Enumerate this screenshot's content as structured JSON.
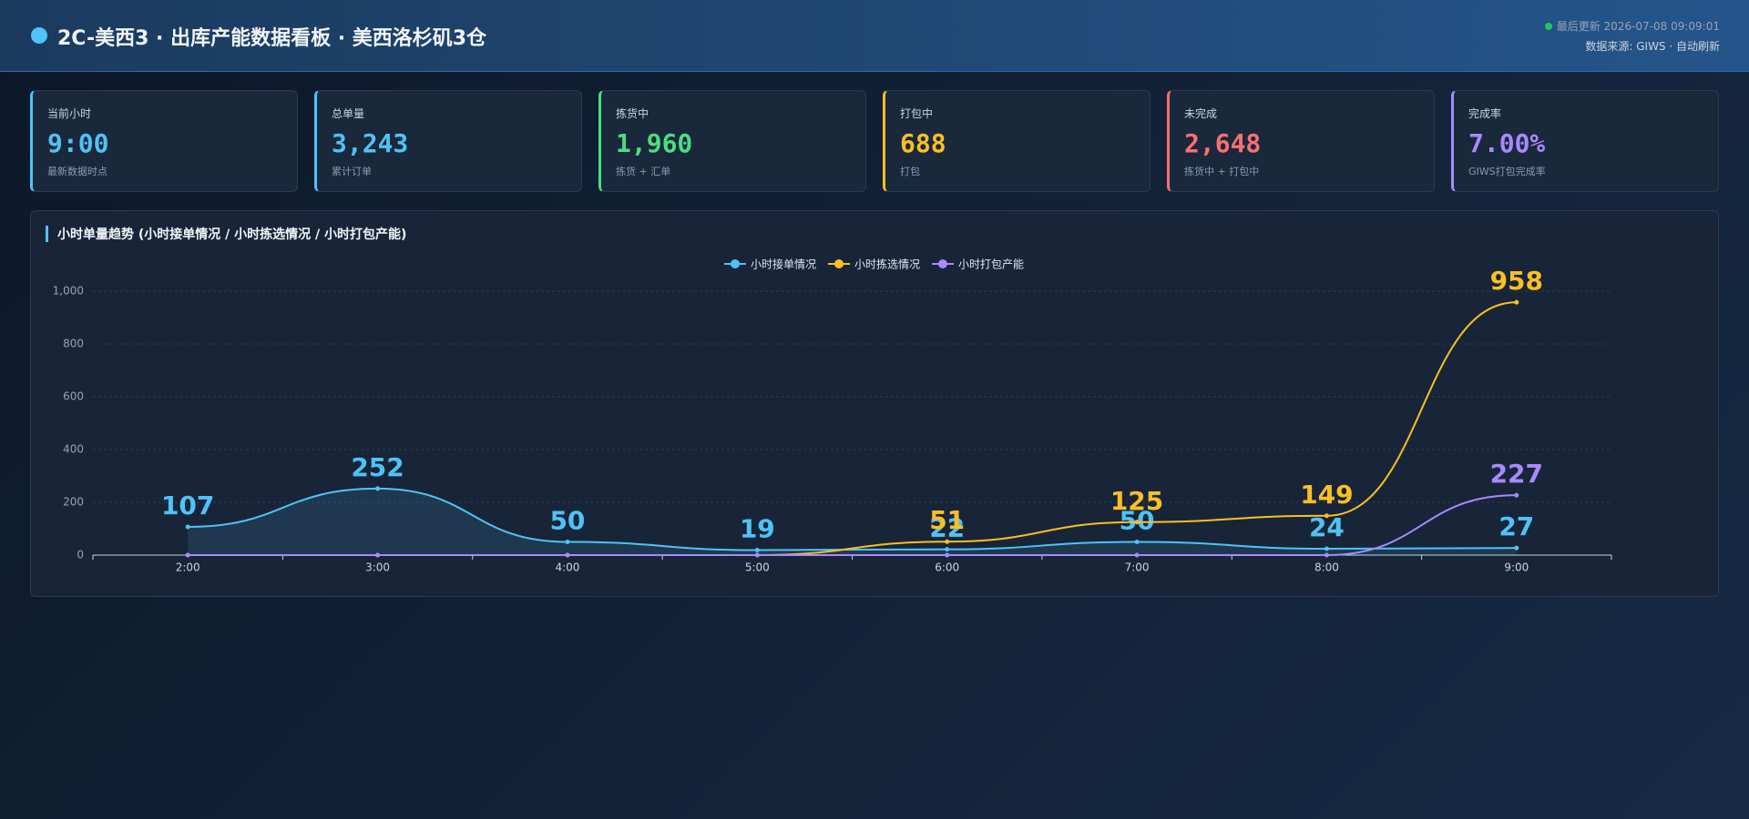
{
  "header": {
    "title": "2C-美西3 · 出库产能数据看板 · 美西洛杉矶3仓",
    "updated": "最后更新 2026-07-08 09:09:01",
    "source": "数据来源: GIWS · 自动刷新"
  },
  "cards": [
    {
      "label": "当前小时",
      "value": "9:00",
      "sub": "最新数据时点",
      "color": "#4fc3f7"
    },
    {
      "label": "总单量",
      "value": "3,243",
      "sub": "累计订单",
      "color": "#4fc3f7"
    },
    {
      "label": "拣货中",
      "value": "1,960",
      "sub": "拣货 + 汇单",
      "color": "#4ade80"
    },
    {
      "label": "打包中",
      "value": "688",
      "sub": "打包",
      "color": "#fbbf24"
    },
    {
      "label": "未完成",
      "value": "2,648",
      "sub": "拣货中 + 打包中",
      "color": "#f87171"
    },
    {
      "label": "完成率",
      "value": "7.00%",
      "sub": "GIWS打包完成率",
      "color": "#a78bfa"
    }
  ],
  "chart_data": {
    "type": "line",
    "title": "小时单量趋势 (小时接单情况 / 小时拣选情况 / 小时打包产能)",
    "categories": [
      "2:00",
      "3:00",
      "4:00",
      "5:00",
      "6:00",
      "7:00",
      "8:00",
      "9:00"
    ],
    "series": [
      {
        "name": "小时接单情况",
        "color": "#4fc3f7",
        "area": true,
        "values": [
          107,
          252,
          50,
          19,
          22,
          50,
          24,
          27
        ]
      },
      {
        "name": "小时拣选情况",
        "color": "#fbbf24",
        "values": [
          0,
          0,
          0,
          0,
          51,
          125,
          149,
          958
        ]
      },
      {
        "name": "小时打包产能",
        "color": "#a78bfa",
        "values": [
          0,
          0,
          0,
          0,
          0,
          0,
          0,
          227
        ]
      }
    ],
    "ylim": [
      0,
      1000
    ],
    "yticks": [
      0,
      200,
      400,
      600,
      800,
      {
        "value": 1000,
        "label": "1,000"
      }
    ],
    "grid": true
  }
}
